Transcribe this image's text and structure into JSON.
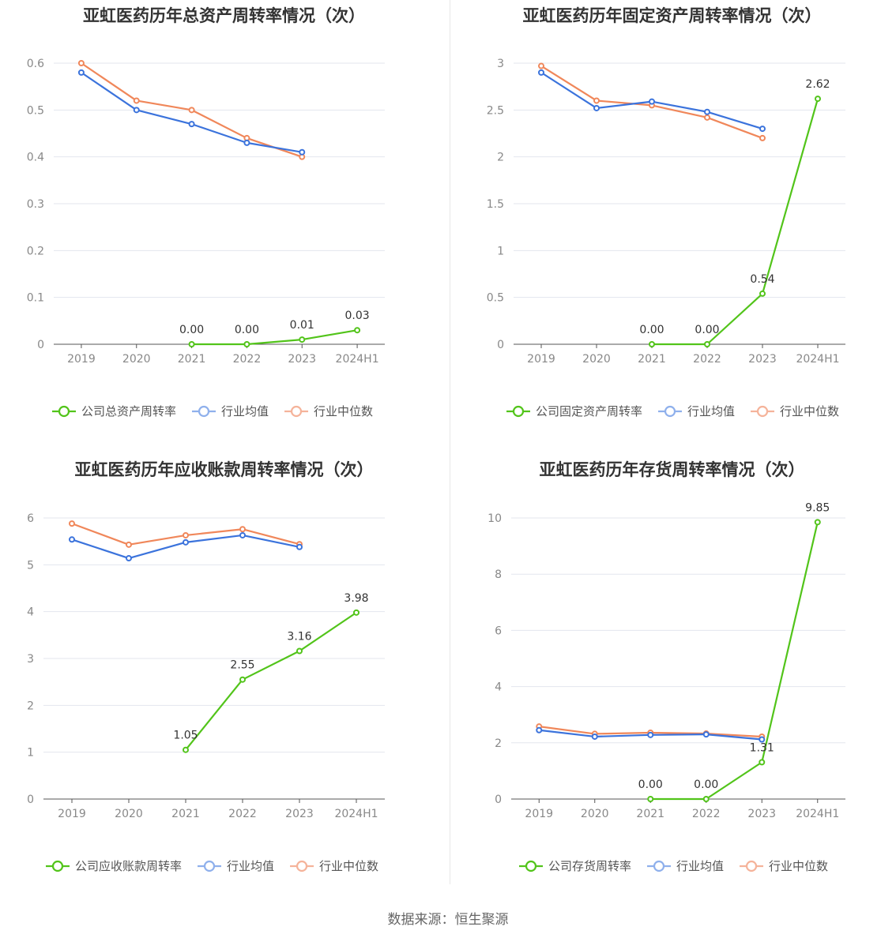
{
  "footer": "数据来源：恒生聚源",
  "colors": {
    "company": "#52c41a",
    "average": "#3b73dc",
    "median": "#f0875a",
    "average_legend": "#8fb0ec",
    "median_legend": "#f5b39a"
  },
  "chart_data": [
    {
      "type": "line",
      "title": "亚虹医药历年总资产周转率情况（次）",
      "categories": [
        "2019",
        "2020",
        "2021",
        "2022",
        "2023",
        "2024H1"
      ],
      "ylim": [
        0,
        0.6
      ],
      "yticks": [
        "0",
        "0.1",
        "0.2",
        "0.3",
        "0.4",
        "0.5",
        "0.6"
      ],
      "series": [
        {
          "name": "公司总资产周转率",
          "role": "company",
          "values": [
            null,
            null,
            0.0,
            0.0,
            0.01,
            0.03
          ],
          "labels": [
            null,
            null,
            "0.00",
            "0.00",
            "0.01",
            "0.03"
          ]
        },
        {
          "name": "行业均值",
          "role": "average",
          "values": [
            0.58,
            0.5,
            0.47,
            0.43,
            0.41,
            null
          ]
        },
        {
          "name": "行业中位数",
          "role": "median",
          "values": [
            0.6,
            0.52,
            0.5,
            0.44,
            0.4,
            null
          ]
        }
      ]
    },
    {
      "type": "line",
      "title": "亚虹医药历年固定资产周转率情况（次）",
      "categories": [
        "2019",
        "2020",
        "2021",
        "2022",
        "2023",
        "2024H1"
      ],
      "ylim": [
        0,
        3
      ],
      "yticks": [
        "0",
        "0.5",
        "1",
        "1.5",
        "2",
        "2.5",
        "3"
      ],
      "series": [
        {
          "name": "公司固定资产周转率",
          "role": "company",
          "values": [
            null,
            null,
            0.0,
            0.0,
            0.54,
            2.62
          ],
          "labels": [
            null,
            null,
            "0.00",
            "0.00",
            "0.54",
            "2.62"
          ]
        },
        {
          "name": "行业均值",
          "role": "average",
          "values": [
            2.9,
            2.52,
            2.59,
            2.48,
            2.3,
            null
          ]
        },
        {
          "name": "行业中位数",
          "role": "median",
          "values": [
            2.97,
            2.6,
            2.55,
            2.42,
            2.2,
            null
          ]
        }
      ]
    },
    {
      "type": "line",
      "title": "亚虹医药历年应收账款周转率情况（次）",
      "categories": [
        "2019",
        "2020",
        "2021",
        "2022",
        "2023",
        "2024H1"
      ],
      "ylim": [
        0,
        6
      ],
      "yticks": [
        "0",
        "1",
        "2",
        "3",
        "4",
        "5",
        "6"
      ],
      "series": [
        {
          "name": "公司应收账款周转率",
          "role": "company",
          "values": [
            null,
            null,
            1.05,
            2.55,
            3.16,
            3.98
          ],
          "labels": [
            null,
            null,
            "1.05",
            "2.55",
            "3.16",
            "3.98"
          ]
        },
        {
          "name": "行业均值",
          "role": "average",
          "values": [
            5.54,
            5.14,
            5.48,
            5.63,
            5.38,
            null
          ]
        },
        {
          "name": "行业中位数",
          "role": "median",
          "values": [
            5.88,
            5.43,
            5.63,
            5.76,
            5.44,
            null
          ]
        }
      ]
    },
    {
      "type": "line",
      "title": "亚虹医药历年存货周转率情况（次）",
      "categories": [
        "2019",
        "2020",
        "2021",
        "2022",
        "2023",
        "2024H1"
      ],
      "ylim": [
        0,
        10
      ],
      "yticks": [
        "0",
        "2",
        "4",
        "6",
        "8",
        "10"
      ],
      "series": [
        {
          "name": "公司存货周转率",
          "role": "company",
          "values": [
            null,
            null,
            0.0,
            0.0,
            1.31,
            9.85
          ],
          "labels": [
            null,
            null,
            "0.00",
            "0.00",
            "1.31",
            "9.85"
          ]
        },
        {
          "name": "行业均值",
          "role": "average",
          "values": [
            2.45,
            2.22,
            2.28,
            2.3,
            2.12,
            null
          ]
        },
        {
          "name": "行业中位数",
          "role": "median",
          "values": [
            2.58,
            2.32,
            2.36,
            2.33,
            2.22,
            null
          ]
        }
      ]
    }
  ]
}
